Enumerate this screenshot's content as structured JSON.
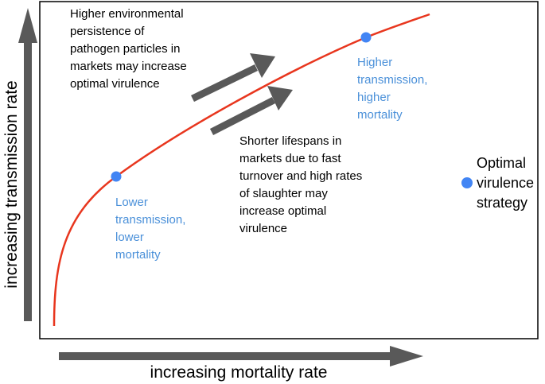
{
  "axes": {
    "y_label": "increasing transmission rate",
    "x_label": "increasing mortality rate"
  },
  "annotations": {
    "persistence": [
      "Higher environmental",
      "persistence of",
      "pathogen particles in",
      "markets may increase",
      "optimal virulence"
    ],
    "lifespans": [
      "Shorter lifespans in",
      "markets due to fast",
      "turnover and high rates",
      "of slaughter may",
      "increase optimal",
      "virulence"
    ]
  },
  "points": {
    "low": [
      "Lower",
      "transmission,",
      "lower",
      "mortality"
    ],
    "high": [
      "Higher",
      "transmission,",
      "higher",
      "mortality"
    ]
  },
  "legend": {
    "label": [
      "Optimal",
      "virulence",
      "strategy"
    ]
  },
  "colors": {
    "curve": "#e8361e",
    "point": "#4285f4",
    "arrow": "#595959",
    "frame": "#000000",
    "point_label": "#4a90d9"
  }
}
